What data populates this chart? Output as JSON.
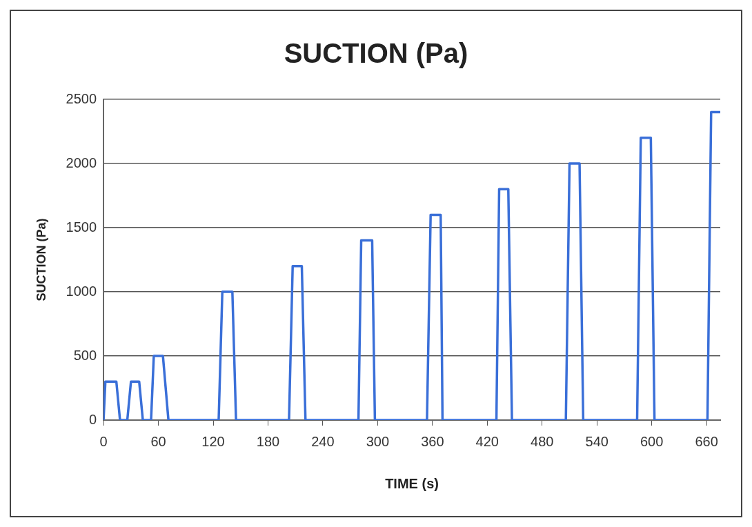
{
  "chart_data": {
    "type": "line",
    "title": "SUCTION (Pa)",
    "xlabel": "TIME (s)",
    "ylabel": "SUCTION (Pa)",
    "x": [
      0,
      2,
      14,
      18,
      26,
      30,
      39,
      43,
      52,
      55,
      65,
      71,
      126,
      130,
      141,
      145,
      203,
      207,
      217,
      221,
      279,
      282,
      294,
      297,
      354,
      358,
      369,
      371,
      430,
      433,
      443,
      447,
      506,
      510,
      521,
      525,
      584,
      588,
      599,
      603,
      661,
      665,
      675
    ],
    "series": [
      {
        "color": "#3a6fd8",
        "values": [
          0,
          300,
          300,
          0,
          0,
          300,
          300,
          0,
          0,
          500,
          500,
          0,
          0,
          1000,
          1000,
          0,
          0,
          1200,
          1200,
          0,
          0,
          1400,
          1400,
          0,
          0,
          1600,
          1600,
          0,
          0,
          1800,
          1800,
          0,
          0,
          2000,
          2000,
          0,
          0,
          2200,
          2200,
          0,
          0,
          2400,
          2400
        ]
      }
    ],
    "xlim": [
      0,
      675
    ],
    "xticks": [
      0,
      60,
      120,
      180,
      240,
      300,
      360,
      420,
      480,
      540,
      600,
      660
    ],
    "ylim": [
      0,
      2500
    ],
    "yticks": [
      0,
      500,
      1000,
      1500,
      2000,
      2500
    ],
    "grid": "y",
    "legend": false,
    "marker": "none",
    "line_style": "solid"
  }
}
